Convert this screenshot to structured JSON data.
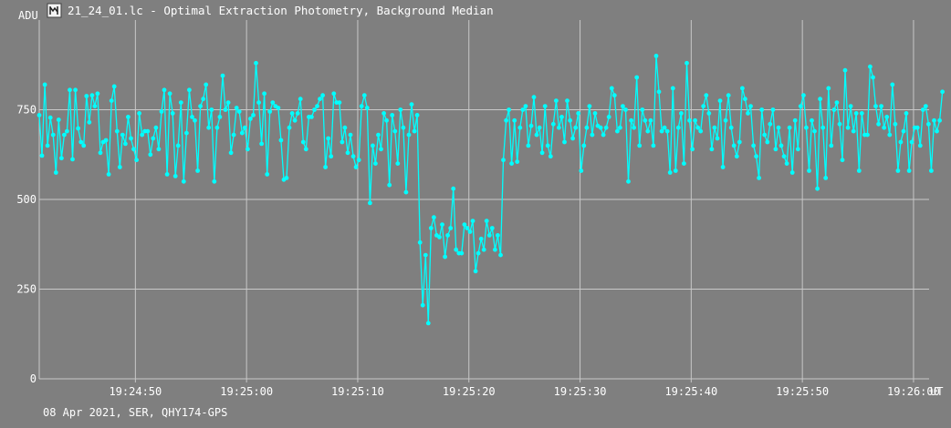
{
  "window": {
    "title": "21_24_01.lc - Optimal Extraction Photometry, Background Median",
    "icon": "lightcurve-app-icon"
  },
  "footer": {
    "text": "08 Apr 2021, SER, QHY174-GPS"
  },
  "colors": {
    "background": "#7f7f7f",
    "grid": "#c8c8c8",
    "series": "#00ffff",
    "text": "#ffffff"
  },
  "chart_data": {
    "type": "line",
    "title": "21_24_01.lc - Optimal Extraction Photometry, Background Median",
    "xlabel": "UT",
    "ylabel": "ADU",
    "xlim": [
      "19:24:41.35",
      "19:26:01.40"
    ],
    "ylim": [
      0,
      1000
    ],
    "grid": true,
    "x_ticks": [
      "19:24:50",
      "19:25:00",
      "19:25:10",
      "19:25:20",
      "19:25:30",
      "19:25:40",
      "19:25:50",
      "19:26:00"
    ],
    "y_ticks": [
      "0",
      "250",
      "500",
      "750"
    ],
    "x_start": "19:24:41.35",
    "x_step_seconds": 0.25,
    "series": [
      {
        "values": [
          735,
          622,
          820,
          650,
          728,
          680,
          575,
          722,
          615,
          680,
          690,
          805,
          612,
          805,
          698,
          660,
          650,
          788,
          715,
          790,
          760,
          795,
          630,
          660,
          665,
          570,
          775,
          815,
          690,
          590,
          680,
          655,
          730,
          670,
          640,
          610,
          740,
          680,
          690,
          690,
          625,
          670,
          700,
          640,
          745,
          805,
          570,
          795,
          740,
          565,
          650,
          770,
          550,
          685,
          805,
          730,
          720,
          580,
          760,
          780,
          820,
          700,
          750,
          550,
          700,
          730,
          845,
          750,
          770,
          630,
          680,
          755,
          745,
          685,
          700,
          640,
          725,
          735,
          880,
          770,
          655,
          795,
          570,
          745,
          770,
          760,
          755,
          665,
          555,
          560,
          700,
          740,
          720,
          740,
          780,
          660,
          640,
          730,
          730,
          750,
          760,
          780,
          790,
          590,
          670,
          620,
          795,
          770,
          770,
          660,
          700,
          630,
          680,
          620,
          590,
          610,
          760,
          790,
          755,
          490,
          650,
          600,
          680,
          640,
          740,
          720,
          540,
          735,
          690,
          600,
          750,
          700,
          520,
          680,
          765,
          690,
          735,
          380,
          205,
          345,
          155,
          420,
          450,
          400,
          395,
          430,
          340,
          400,
          420,
          530,
          360,
          350,
          350,
          430,
          420,
          410,
          440,
          300,
          350,
          390,
          360,
          440,
          400,
          420,
          360,
          400,
          345,
          610,
          720,
          750,
          600,
          720,
          605,
          700,
          750,
          760,
          650,
          705,
          785,
          680,
          700,
          630,
          760,
          650,
          620,
          710,
          775,
          700,
          730,
          660,
          775,
          720,
          670,
          700,
          740,
          580,
          650,
          700,
          760,
          680,
          740,
          705,
          700,
          680,
          700,
          730,
          810,
          790,
          690,
          700,
          760,
          750,
          550,
          720,
          700,
          840,
          650,
          750,
          720,
          690,
          720,
          650,
          900,
          800,
          690,
          700,
          690,
          575,
          810,
          580,
          700,
          740,
          600,
          880,
          720,
          640,
          720,
          700,
          690,
          760,
          790,
          740,
          640,
          700,
          670,
          775,
          590,
          720,
          790,
          700,
          650,
          620,
          660,
          810,
          780,
          740,
          760,
          650,
          620,
          560,
          750,
          680,
          660,
          710,
          750,
          640,
          700,
          650,
          620,
          600,
          700,
          575,
          720,
          640,
          760,
          790,
          700,
          580,
          720,
          690,
          530,
          780,
          700,
          560,
          810,
          650,
          750,
          770,
          710,
          610,
          860,
          700,
          760,
          690,
          740,
          580,
          740,
          680,
          680,
          870,
          840,
          760,
          710,
          760,
          700,
          730,
          680,
          820,
          710,
          580,
          660,
          690,
          740,
          580,
          660,
          700,
          700,
          650,
          750,
          760,
          710,
          580,
          720,
          690,
          720,
          800
        ]
      }
    ]
  }
}
